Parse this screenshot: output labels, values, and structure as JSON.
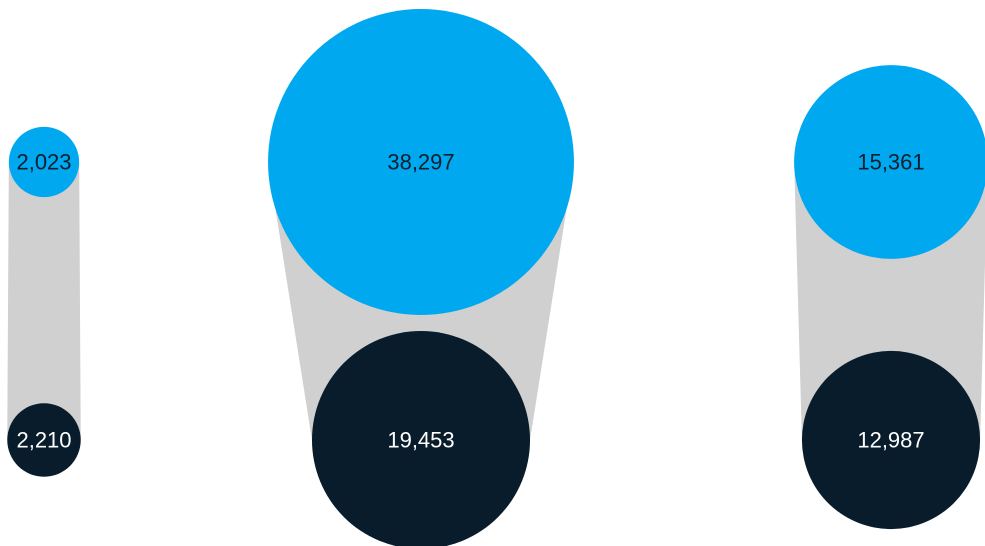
{
  "chart_data": {
    "type": "bubble-pairs",
    "groups": [
      {
        "top": 2023,
        "top_label": "2,023",
        "bottom": 2210,
        "bottom_label": "2,210"
      },
      {
        "top": 38297,
        "top_label": "38,297",
        "bottom": 19453,
        "bottom_label": "19,453"
      },
      {
        "top": 15361,
        "top_label": "15,361",
        "bottom": 12987,
        "bottom_label": "12,987"
      }
    ],
    "colors": {
      "top": "#00a8f0",
      "bottom": "#081c2b",
      "connector": "#d0d0d0",
      "top_text": "#0b1f2e",
      "bottom_text": "#ffffff"
    }
  }
}
